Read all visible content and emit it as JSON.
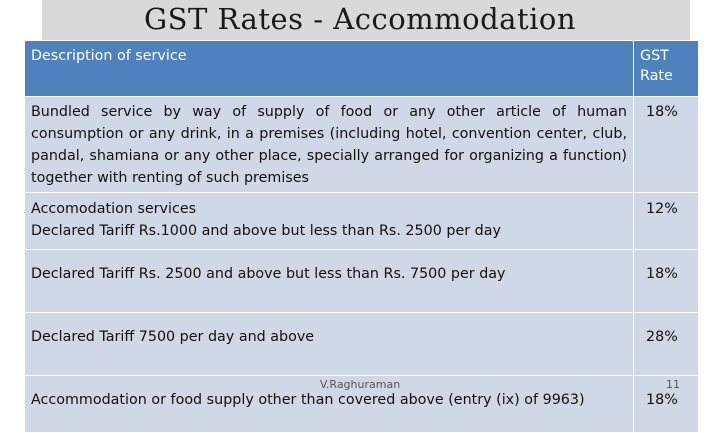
{
  "title": "GST Rates - Accommodation",
  "table": {
    "headers": [
      "Description of service",
      "GST Rate"
    ],
    "rows": [
      {
        "description": "Bundled service by way of supply of food or any other article of human consumption or any drink, in a premises (including hotel, convention center, club, pandal, shamiana or any other place, specially arranged for organizing a function) together with renting of such premises",
        "rate": "18%"
      },
      {
        "description_line1": "Accomodation services",
        "description_line2": "Declared Tariff Rs.1000 and above but less than  Rs. 2500 per day",
        "rate": "12%"
      },
      {
        "description": "Declared Tariff Rs. 2500  and above but less than Rs. 7500 per day",
        "rate": "18%"
      },
      {
        "description": "Declared Tariff 7500 per day and above",
        "rate": "28%"
      },
      {
        "description": "Accommodation or food supply other than covered above (entry (ix) of 9963)",
        "rate": "18%"
      }
    ]
  },
  "footer": {
    "author": "V.Raghuraman",
    "page_number": "11"
  },
  "colors": {
    "header_bg": "#4f81bd",
    "row_bg": "#d0d8e8",
    "title_bar_bg": "#d9d9d9"
  }
}
